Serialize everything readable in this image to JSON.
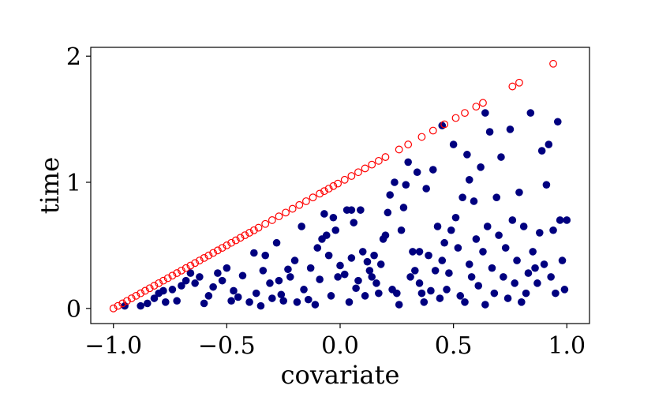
{
  "chart_data": {
    "type": "scatter",
    "title": "",
    "xlabel": "covariate",
    "ylabel": "time",
    "xlim": [
      -1.1,
      1.1
    ],
    "ylim": [
      -0.12,
      2.07
    ],
    "xticks": [
      -1.0,
      -0.5,
      0.0,
      0.5,
      1.0
    ],
    "xtick_labels": [
      "−1.0",
      "−0.5",
      "0.0",
      "0.5",
      "1.0"
    ],
    "yticks": [
      0,
      1,
      2
    ],
    "ytick_labels": [
      "0",
      "1",
      "2"
    ],
    "grid": false,
    "legend": "none",
    "colors": {
      "filled": "#00007f",
      "open": "#ff0000"
    },
    "series": [
      {
        "marker": "filled-circle",
        "color": "#00007f",
        "points": [
          [
            -0.95,
            0.02
          ],
          [
            -0.88,
            0.02
          ],
          [
            -0.85,
            0.04
          ],
          [
            -0.82,
            0.08
          ],
          [
            -0.8,
            0.12
          ],
          [
            -0.78,
            0.14
          ],
          [
            -0.77,
            0.05
          ],
          [
            -0.74,
            0.15
          ],
          [
            -0.72,
            0.06
          ],
          [
            -0.7,
            0.18
          ],
          [
            -0.68,
            0.22
          ],
          [
            -0.66,
            0.28
          ],
          [
            -0.64,
            0.2
          ],
          [
            -0.62,
            0.25
          ],
          [
            -0.6,
            0.04
          ],
          [
            -0.58,
            0.1
          ],
          [
            -0.56,
            0.17
          ],
          [
            -0.54,
            0.28
          ],
          [
            -0.52,
            0.22
          ],
          [
            -0.5,
            0.32
          ],
          [
            -0.48,
            0.06
          ],
          [
            -0.47,
            0.14
          ],
          [
            -0.45,
            0.09
          ],
          [
            -0.43,
            0.26
          ],
          [
            -0.4,
            0.05
          ],
          [
            -0.38,
            0.44
          ],
          [
            -0.37,
            0.12
          ],
          [
            -0.35,
            0.02
          ],
          [
            -0.34,
            0.3
          ],
          [
            -0.33,
            0.42
          ],
          [
            -0.31,
            0.2
          ],
          [
            -0.3,
            0.08
          ],
          [
            -0.28,
            0.52
          ],
          [
            -0.27,
            0.22
          ],
          [
            -0.26,
            0.11
          ],
          [
            -0.25,
            0.06
          ],
          [
            -0.23,
            0.31
          ],
          [
            -0.22,
            0.25
          ],
          [
            -0.2,
            0.38
          ],
          [
            -0.19,
            0.05
          ],
          [
            -0.17,
            0.65
          ],
          [
            -0.16,
            0.15
          ],
          [
            -0.14,
            0.07
          ],
          [
            -0.13,
            0.32
          ],
          [
            -0.11,
            0.03
          ],
          [
            -0.1,
            0.48
          ],
          [
            -0.09,
            0.23
          ],
          [
            -0.08,
            0.55
          ],
          [
            -0.07,
            0.75
          ],
          [
            -0.06,
            0.58
          ],
          [
            -0.05,
            0.42
          ],
          [
            -0.04,
            0.1
          ],
          [
            -0.03,
            0.72
          ],
          [
            -0.02,
            0.62
          ],
          [
            -0.01,
            0.25
          ],
          [
            0.0,
            0.34
          ],
          [
            0.02,
            0.27
          ],
          [
            0.03,
            0.78
          ],
          [
            0.04,
            0.05
          ],
          [
            0.05,
            0.4
          ],
          [
            0.06,
            0.68
          ],
          [
            0.07,
            0.16
          ],
          [
            0.08,
            0.22
          ],
          [
            0.09,
            0.78
          ],
          [
            0.1,
            0.45
          ],
          [
            0.11,
            0.1
          ],
          [
            0.12,
            0.37
          ],
          [
            0.13,
            0.3
          ],
          [
            0.14,
            0.25
          ],
          [
            0.15,
            0.42
          ],
          [
            0.16,
            0.2
          ],
          [
            0.17,
            0.12
          ],
          [
            0.18,
            0.35
          ],
          [
            0.19,
            0.55
          ],
          [
            0.2,
            0.58
          ],
          [
            0.21,
            0.76
          ],
          [
            0.22,
            0.9
          ],
          [
            0.23,
            0.15
          ],
          [
            0.24,
            1.0
          ],
          [
            0.25,
            0.12
          ],
          [
            0.26,
            0.03
          ],
          [
            0.27,
            0.62
          ],
          [
            0.28,
            0.8
          ],
          [
            0.29,
            0.98
          ],
          [
            0.3,
            1.16
          ],
          [
            0.31,
            0.25
          ],
          [
            0.32,
            0.45
          ],
          [
            0.33,
            0.3
          ],
          [
            0.34,
            1.08
          ],
          [
            0.35,
            0.2
          ],
          [
            0.36,
            0.12
          ],
          [
            0.37,
            0.05
          ],
          [
            0.38,
            0.95
          ],
          [
            0.39,
            0.42
          ],
          [
            0.4,
            0.14
          ],
          [
            0.41,
            1.1
          ],
          [
            0.42,
            0.3
          ],
          [
            0.43,
            0.65
          ],
          [
            0.44,
            0.08
          ],
          [
            0.45,
            0.38
          ],
          [
            0.46,
            0.52
          ],
          [
            0.47,
            0.15
          ],
          [
            0.48,
            0.28
          ],
          [
            0.49,
            0.62
          ],
          [
            0.5,
            1.3
          ],
          [
            0.51,
            0.72
          ],
          [
            0.52,
            0.48
          ],
          [
            0.53,
            0.1
          ],
          [
            0.54,
            0.88
          ],
          [
            0.55,
            0.05
          ],
          [
            0.56,
            1.22
          ],
          [
            0.57,
            0.35
          ],
          [
            0.58,
            0.25
          ],
          [
            0.59,
            0.85
          ],
          [
            0.6,
            0.55
          ],
          [
            0.61,
            0.18
          ],
          [
            0.62,
            1.12
          ],
          [
            0.63,
            0.45
          ],
          [
            0.64,
            0.03
          ],
          [
            0.65,
            0.65
          ],
          [
            0.66,
            1.4
          ],
          [
            0.67,
            0.32
          ],
          [
            0.68,
            0.12
          ],
          [
            0.69,
            0.88
          ],
          [
            0.7,
            0.58
          ],
          [
            0.71,
            1.2
          ],
          [
            0.72,
            0.25
          ],
          [
            0.73,
            0.48
          ],
          [
            0.74,
            0.08
          ],
          [
            0.75,
            1.42
          ],
          [
            0.76,
            0.7
          ],
          [
            0.77,
            0.2
          ],
          [
            0.78,
            0.38
          ],
          [
            0.79,
            0.92
          ],
          [
            0.8,
            0.05
          ],
          [
            0.81,
            0.65
          ],
          [
            0.82,
            0.12
          ],
          [
            0.83,
            0.28
          ],
          [
            0.84,
            1.55
          ],
          [
            0.85,
            0.45
          ],
          [
            0.86,
            0.32
          ],
          [
            0.87,
            0.2
          ],
          [
            0.88,
            0.6
          ],
          [
            0.89,
            1.25
          ],
          [
            0.9,
            0.35
          ],
          [
            0.91,
            0.98
          ],
          [
            0.92,
            1.3
          ],
          [
            0.93,
            0.25
          ],
          [
            0.94,
            0.62
          ],
          [
            0.95,
            0.12
          ],
          [
            0.96,
            1.48
          ],
          [
            0.97,
            0.7
          ],
          [
            0.98,
            0.38
          ],
          [
            0.99,
            0.15
          ],
          [
            1.0,
            0.7
          ],
          [
            0.64,
            1.55
          ],
          [
            0.57,
            1.02
          ],
          [
            0.45,
            1.45
          ],
          [
            0.35,
            0.45
          ],
          [
            0.05,
            0.78
          ]
        ]
      },
      {
        "marker": "open-circle",
        "color": "#ff0000",
        "points": [
          [
            -1.0,
            0.0
          ],
          [
            -0.98,
            0.02
          ],
          [
            -0.96,
            0.04
          ],
          [
            -0.94,
            0.06
          ],
          [
            -0.92,
            0.08
          ],
          [
            -0.9,
            0.1
          ],
          [
            -0.88,
            0.12
          ],
          [
            -0.86,
            0.14
          ],
          [
            -0.84,
            0.16
          ],
          [
            -0.82,
            0.18
          ],
          [
            -0.8,
            0.2
          ],
          [
            -0.78,
            0.22
          ],
          [
            -0.76,
            0.24
          ],
          [
            -0.74,
            0.26
          ],
          [
            -0.72,
            0.28
          ],
          [
            -0.7,
            0.3
          ],
          [
            -0.68,
            0.32
          ],
          [
            -0.66,
            0.34
          ],
          [
            -0.64,
            0.36
          ],
          [
            -0.62,
            0.38
          ],
          [
            -0.6,
            0.4
          ],
          [
            -0.58,
            0.42
          ],
          [
            -0.56,
            0.44
          ],
          [
            -0.54,
            0.46
          ],
          [
            -0.52,
            0.48
          ],
          [
            -0.5,
            0.5
          ],
          [
            -0.48,
            0.52
          ],
          [
            -0.46,
            0.54
          ],
          [
            -0.44,
            0.56
          ],
          [
            -0.42,
            0.58
          ],
          [
            -0.4,
            0.6
          ],
          [
            -0.38,
            0.62
          ],
          [
            -0.36,
            0.64
          ],
          [
            -0.33,
            0.67
          ],
          [
            -0.3,
            0.7
          ],
          [
            -0.27,
            0.73
          ],
          [
            -0.24,
            0.76
          ],
          [
            -0.21,
            0.79
          ],
          [
            -0.18,
            0.82
          ],
          [
            -0.15,
            0.85
          ],
          [
            -0.12,
            0.88
          ],
          [
            -0.09,
            0.91
          ],
          [
            -0.07,
            0.93
          ],
          [
            -0.05,
            0.95
          ],
          [
            -0.03,
            0.97
          ],
          [
            -0.01,
            0.99
          ],
          [
            0.02,
            1.02
          ],
          [
            0.05,
            1.05
          ],
          [
            0.08,
            1.08
          ],
          [
            0.11,
            1.11
          ],
          [
            0.14,
            1.14
          ],
          [
            0.17,
            1.17
          ],
          [
            0.2,
            1.2
          ],
          [
            0.26,
            1.26
          ],
          [
            0.3,
            1.3
          ],
          [
            0.36,
            1.36
          ],
          [
            0.41,
            1.41
          ],
          [
            0.46,
            1.46
          ],
          [
            0.51,
            1.51
          ],
          [
            0.55,
            1.55
          ],
          [
            0.6,
            1.6
          ],
          [
            0.63,
            1.63
          ],
          [
            0.76,
            1.76
          ],
          [
            0.79,
            1.79
          ],
          [
            0.94,
            1.94
          ]
        ]
      }
    ]
  }
}
